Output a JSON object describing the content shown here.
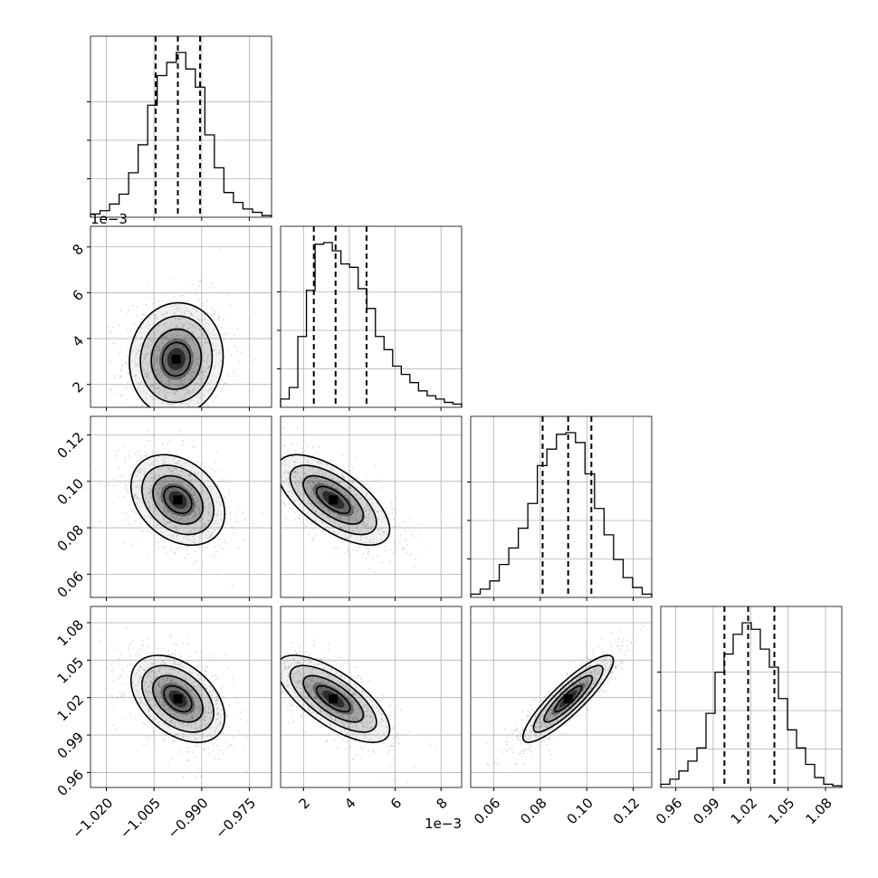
{
  "chart_data": {
    "type": "corner",
    "parameters": [
      {
        "range": [
          -1.025,
          -0.968
        ],
        "ticks": [
          -1.02,
          -1.005,
          -0.99,
          -0.975
        ],
        "tick_labels": [
          "−1.020",
          "−1.005",
          "−0.990",
          "−0.975"
        ],
        "offset_text": "",
        "quantiles": [
          -1.0045,
          -0.9975,
          -0.9905
        ],
        "histogram": [
          0.02,
          0.04,
          0.08,
          0.14,
          0.27,
          0.44,
          0.68,
          0.86,
          0.94,
          1.0,
          0.9,
          0.79,
          0.5,
          0.3,
          0.15,
          0.09,
          0.05,
          0.03,
          0.01
        ]
      },
      {
        "range": [
          1.0,
          8.9
        ],
        "ticks": [
          2,
          4,
          6,
          8
        ],
        "tick_labels": [
          "2",
          "4",
          "6",
          "8"
        ],
        "offset_text": "1e−3",
        "quantiles": [
          2.45,
          3.4,
          4.75
        ],
        "histogram": [
          0.05,
          0.12,
          0.43,
          0.71,
          0.99,
          1.0,
          0.95,
          0.87,
          0.85,
          0.72,
          0.6,
          0.43,
          0.35,
          0.25,
          0.2,
          0.15,
          0.1,
          0.07,
          0.05,
          0.03,
          0.02
        ]
      },
      {
        "range": [
          0.05,
          0.128
        ],
        "ticks": [
          0.06,
          0.08,
          0.1,
          0.12
        ],
        "tick_labels": [
          "0.06",
          "0.08",
          "0.10",
          "0.12"
        ],
        "offset_text": "",
        "quantiles": [
          0.081,
          0.092,
          0.102
        ],
        "histogram": [
          0.02,
          0.05,
          0.1,
          0.2,
          0.3,
          0.42,
          0.57,
          0.8,
          0.9,
          0.99,
          1.0,
          0.94,
          0.75,
          0.54,
          0.38,
          0.23,
          0.12,
          0.06,
          0.02
        ]
      },
      {
        "range": [
          0.948,
          1.093
        ],
        "ticks": [
          0.96,
          0.99,
          1.02,
          1.05,
          1.08
        ],
        "tick_labels": [
          "0.96",
          "0.99",
          "1.02",
          "1.05",
          "1.08"
        ],
        "offset_text": "",
        "quantiles": [
          0.999,
          1.018,
          1.039
        ],
        "histogram": [
          0.02,
          0.05,
          0.1,
          0.16,
          0.24,
          0.45,
          0.7,
          0.81,
          0.93,
          1.0,
          0.96,
          0.84,
          0.73,
          0.54,
          0.35,
          0.24,
          0.14,
          0.06,
          0.02,
          0.01
        ]
      }
    ],
    "pairs": [
      {
        "x": 0,
        "y": 1,
        "center": [
          -0.998,
          3.1
        ],
        "spread": [
          0.0072,
          1.2
        ],
        "rho": 0.05
      },
      {
        "x": 0,
        "y": 2,
        "center": [
          -0.9975,
          0.092
        ],
        "spread": [
          0.0072,
          0.0095
        ],
        "rho": -0.3
      },
      {
        "x": 1,
        "y": 2,
        "center": [
          3.3,
          0.092
        ],
        "spread": [
          1.2,
          0.0095
        ],
        "rho": -0.65
      },
      {
        "x": 0,
        "y": 3,
        "center": [
          -0.9975,
          1.019
        ],
        "spread": [
          0.0072,
          0.017
        ],
        "rho": -0.42
      },
      {
        "x": 1,
        "y": 3,
        "center": [
          3.3,
          1.019
        ],
        "spread": [
          1.2,
          0.017
        ],
        "rho": -0.7
      },
      {
        "x": 2,
        "y": 3,
        "center": [
          0.092,
          1.019
        ],
        "spread": [
          0.0095,
          0.017
        ],
        "rho": 0.88
      }
    ],
    "contour_levels": [
      0.5,
      1.0,
      1.5,
      2.0
    ],
    "grid": true,
    "colors": {
      "hist": "#000000",
      "points": "#9a9a9a",
      "density": "#000000",
      "grid": "#b0b0b0",
      "axes": "#000000"
    }
  }
}
